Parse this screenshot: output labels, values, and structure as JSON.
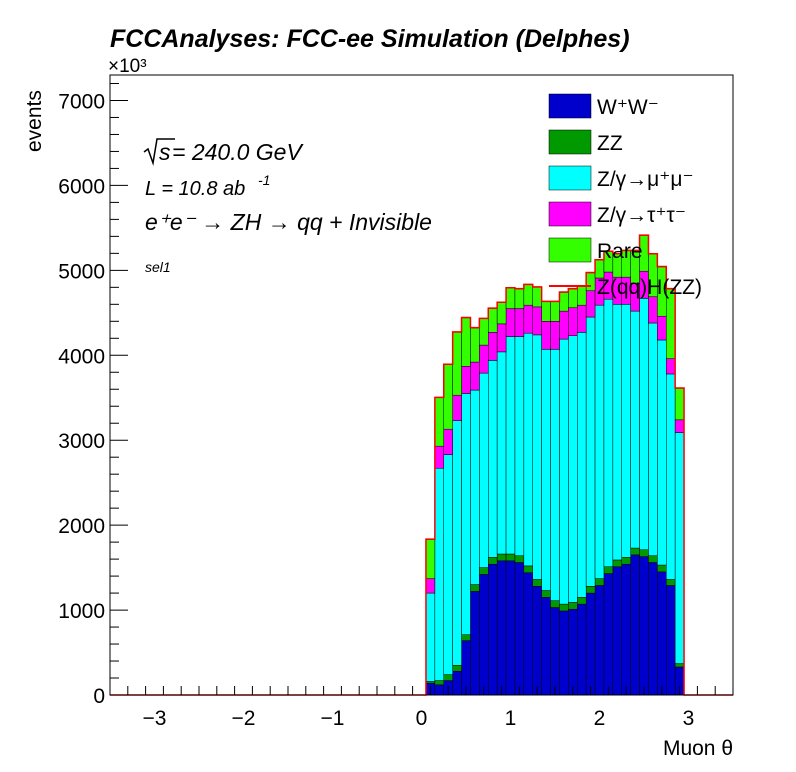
{
  "title": "FCCAnalyses: FCC-ee Simulation (Delphes)",
  "annotations": {
    "sqrt_s_prefix": "s",
    "sqrt_s_value": " = 240.0 GeV",
    "lumi": "L = 10.8 ab",
    "lumi_exp": "-1",
    "process": "e⁺e⁻ → ZH → qq + Invisible",
    "selection": "sel1"
  },
  "chart_data": {
    "type": "area",
    "title": "FCCAnalyses: FCC-ee Simulation (Delphes)",
    "xlabel": "Muon θ",
    "ylabel": "events",
    "y_multiplier": "×10³",
    "xlim": [
      -3.5,
      3.5
    ],
    "ylim": [
      0,
      7300
    ],
    "x_ticks": [
      -3,
      -2,
      -1,
      0,
      1,
      2,
      3
    ],
    "x_tick_labels": [
      "−3",
      "−2",
      "−1",
      "0",
      "1",
      "2",
      "3"
    ],
    "y_ticks": [
      0,
      1000,
      2000,
      3000,
      4000,
      5000,
      6000,
      7000
    ],
    "y_tick_labels": [
      "0",
      "1000",
      "2000",
      "3000",
      "4000",
      "5000",
      "6000",
      "7000"
    ],
    "bin_width": 0.1,
    "x": [
      0.1,
      0.2,
      0.3,
      0.4,
      0.5,
      0.6,
      0.7,
      0.8,
      0.9,
      1.0,
      1.1,
      1.2,
      1.3,
      1.4,
      1.5,
      1.6,
      1.7,
      1.8,
      1.9,
      2.0,
      2.1,
      2.2,
      2.3,
      2.4,
      2.5,
      2.6,
      2.7,
      2.8,
      2.9
    ],
    "stacked": true,
    "series": [
      {
        "name": "W⁺W⁻",
        "color": "#0000cc",
        "values": [
          140,
          120,
          170,
          280,
          640,
          1220,
          1420,
          1540,
          1580,
          1580,
          1560,
          1440,
          1280,
          1150,
          1030,
          990,
          1010,
          1070,
          1200,
          1290,
          1430,
          1510,
          1540,
          1650,
          1630,
          1560,
          1450,
          1290,
          330
        ]
      },
      {
        "name": "ZZ",
        "color": "#009900",
        "values": [
          20,
          50,
          70,
          70,
          70,
          80,
          80,
          80,
          80,
          80,
          80,
          80,
          80,
          80,
          80,
          80,
          80,
          80,
          80,
          80,
          80,
          80,
          80,
          80,
          80,
          80,
          80,
          70,
          40
        ]
      },
      {
        "name": "Z/γ→μ⁺μ⁻",
        "color": "#00ffff",
        "values": [
          1040,
          2500,
          2590,
          2880,
          2840,
          2290,
          2290,
          2320,
          2380,
          2560,
          2580,
          2740,
          2880,
          2840,
          2960,
          3120,
          3140,
          3120,
          3170,
          3220,
          3150,
          3010,
          2980,
          2790,
          2960,
          2740,
          2650,
          2420,
          2720
        ]
      },
      {
        "name": "Z/γ→τ⁺τ⁻",
        "color": "#ff00ff",
        "values": [
          170,
          260,
          300,
          300,
          320,
          330,
          330,
          330,
          330,
          330,
          330,
          330,
          330,
          330,
          330,
          330,
          330,
          320,
          310,
          320,
          320,
          320,
          320,
          330,
          320,
          310,
          280,
          180,
          150
        ]
      },
      {
        "name": "Rare",
        "color": "#33ff00",
        "values": [
          460,
          570,
          760,
          740,
          570,
          400,
          310,
          280,
          250,
          240,
          230,
          240,
          230,
          230,
          230,
          220,
          220,
          220,
          210,
          210,
          240,
          270,
          310,
          380,
          420,
          500,
          580,
          820,
          370
        ]
      },
      {
        "name": "Z(qq)H(ZZ)",
        "color": "#ff0000",
        "style": "line",
        "values": [
          5,
          5,
          5,
          5,
          5,
          5,
          5,
          5,
          5,
          5,
          5,
          5,
          5,
          5,
          5,
          5,
          5,
          5,
          5,
          5,
          5,
          5,
          5,
          5,
          5,
          5,
          5,
          5,
          5
        ]
      }
    ],
    "legend_placement": "top-right",
    "grid": false
  }
}
